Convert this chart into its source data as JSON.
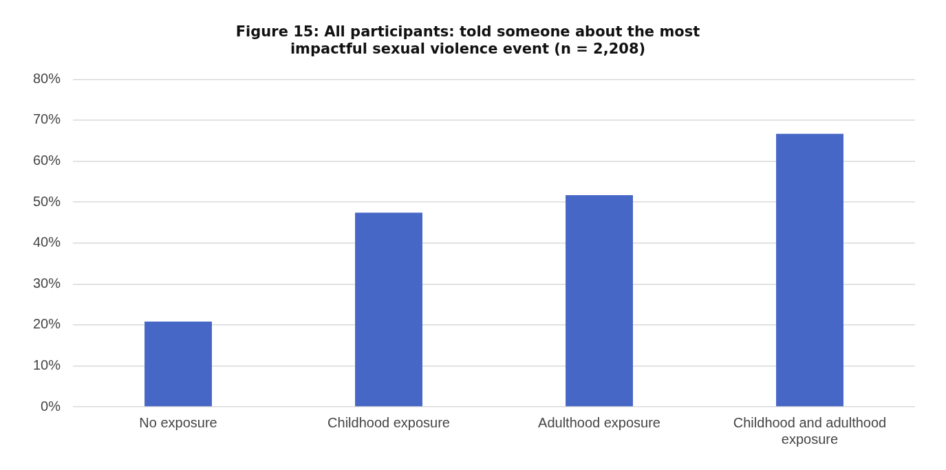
{
  "chart_data": {
    "type": "bar",
    "title": "Figure 15: All participants: told someone about the most impactful sexual violence event (n = 2,208)",
    "categories": [
      "No exposure",
      "Childhood exposure",
      "Adulthood exposure",
      "Childhood and adulthood exposure"
    ],
    "values": [
      20.8,
      47.4,
      51.7,
      66.7
    ],
    "color": "#4767c6",
    "ylim": [
      0,
      80
    ],
    "yticks": [
      {
        "value": 0,
        "label": "0%"
      },
      {
        "value": 10,
        "label": "10%"
      },
      {
        "value": 20,
        "label": "20%"
      },
      {
        "value": 30,
        "label": "30%"
      },
      {
        "value": 40,
        "label": "40%"
      },
      {
        "value": 50,
        "label": "50%"
      },
      {
        "value": 60,
        "label": "60%"
      },
      {
        "value": 70,
        "label": "70%"
      },
      {
        "value": 80,
        "label": "80%"
      }
    ],
    "grid": "y",
    "legend": false
  }
}
